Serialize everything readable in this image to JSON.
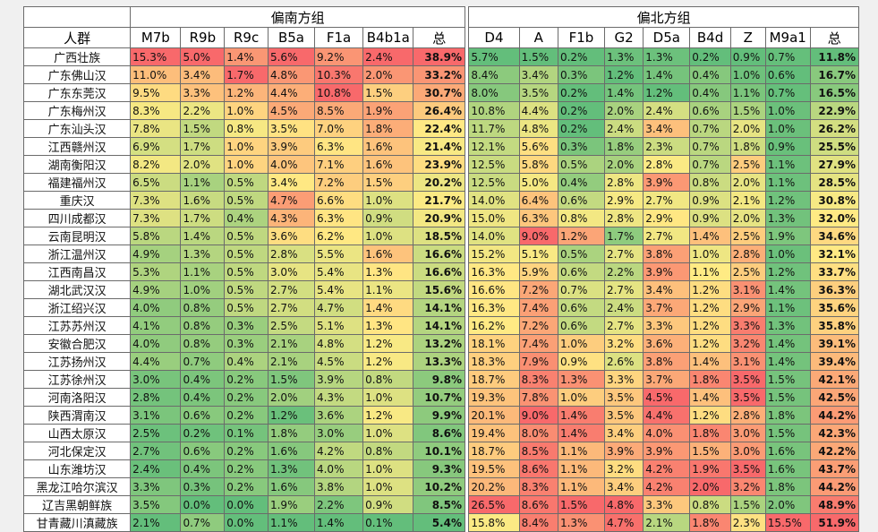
{
  "chart_data": {
    "type": "table",
    "corner_label": "人群",
    "groups": [
      {
        "name": "偏南方组",
        "columns": [
          "M7b",
          "R9b",
          "R9c",
          "B5a",
          "F1a",
          "B4b1a",
          "总"
        ]
      },
      {
        "name": "偏北方组",
        "columns": [
          "D4",
          "A",
          "F1b",
          "G2",
          "D5a",
          "B4d",
          "Z",
          "M9a1",
          "总"
        ]
      }
    ],
    "rows": [
      {
        "name": "广西壮族",
        "south": [
          "15.3%",
          "5.0%",
          "1.4%",
          "5.6%",
          "9.2%",
          "2.4%",
          "38.9%"
        ],
        "north": [
          "5.7%",
          "1.5%",
          "0.2%",
          "1.3%",
          "1.3%",
          "0.2%",
          "0.9%",
          "0.7%",
          "11.8%"
        ]
      },
      {
        "name": "广东佛山汉",
        "south": [
          "11.0%",
          "3.4%",
          "1.7%",
          "4.8%",
          "10.3%",
          "2.0%",
          "33.2%"
        ],
        "north": [
          "8.4%",
          "3.4%",
          "0.3%",
          "1.2%",
          "1.4%",
          "0.4%",
          "1.0%",
          "0.6%",
          "16.7%"
        ]
      },
      {
        "name": "广东东莞汉",
        "south": [
          "9.5%",
          "3.3%",
          "1.2%",
          "4.4%",
          "10.8%",
          "1.5%",
          "30.7%"
        ],
        "north": [
          "8.0%",
          "3.5%",
          "0.2%",
          "1.4%",
          "1.2%",
          "0.4%",
          "1.1%",
          "0.7%",
          "16.5%"
        ]
      },
      {
        "name": "广东梅州汉",
        "south": [
          "8.3%",
          "2.2%",
          "1.0%",
          "4.5%",
          "8.5%",
          "1.9%",
          "26.4%"
        ],
        "north": [
          "10.8%",
          "4.4%",
          "0.2%",
          "2.0%",
          "2.4%",
          "0.6%",
          "1.5%",
          "1.0%",
          "22.9%"
        ]
      },
      {
        "name": "广东汕头汉",
        "south": [
          "7.8%",
          "1.5%",
          "0.8%",
          "3.5%",
          "7.0%",
          "1.8%",
          "22.4%"
        ],
        "north": [
          "11.7%",
          "4.8%",
          "0.2%",
          "2.4%",
          "3.4%",
          "0.7%",
          "2.0%",
          "1.0%",
          "26.2%"
        ]
      },
      {
        "name": "江西赣州汉",
        "south": [
          "6.9%",
          "1.7%",
          "1.0%",
          "3.9%",
          "6.3%",
          "1.6%",
          "21.4%"
        ],
        "north": [
          "12.1%",
          "5.6%",
          "0.3%",
          "1.8%",
          "2.3%",
          "0.7%",
          "1.8%",
          "0.9%",
          "25.5%"
        ]
      },
      {
        "name": "湖南衡阳汉",
        "south": [
          "8.2%",
          "2.0%",
          "1.0%",
          "4.0%",
          "7.1%",
          "1.6%",
          "23.9%"
        ],
        "north": [
          "12.5%",
          "5.8%",
          "0.5%",
          "2.0%",
          "2.8%",
          "0.7%",
          "2.5%",
          "1.1%",
          "27.9%"
        ]
      },
      {
        "name": "福建福州汉",
        "south": [
          "6.5%",
          "1.1%",
          "0.5%",
          "3.4%",
          "7.2%",
          "1.5%",
          "20.2%"
        ],
        "north": [
          "12.5%",
          "5.0%",
          "0.4%",
          "2.8%",
          "3.9%",
          "0.8%",
          "2.0%",
          "1.1%",
          "28.5%"
        ]
      },
      {
        "name": "重庆汉",
        "south": [
          "7.3%",
          "1.6%",
          "0.5%",
          "4.7%",
          "6.6%",
          "1.0%",
          "21.7%"
        ],
        "north": [
          "14.0%",
          "6.4%",
          "0.6%",
          "2.9%",
          "2.7%",
          "0.9%",
          "2.1%",
          "1.2%",
          "30.8%"
        ]
      },
      {
        "name": "四川成都汉",
        "south": [
          "7.3%",
          "1.7%",
          "0.4%",
          "4.3%",
          "6.3%",
          "0.9%",
          "20.9%"
        ],
        "north": [
          "15.0%",
          "6.3%",
          "0.8%",
          "2.8%",
          "2.9%",
          "0.9%",
          "2.0%",
          "1.3%",
          "32.0%"
        ]
      },
      {
        "name": "云南昆明汉",
        "south": [
          "5.8%",
          "1.4%",
          "0.5%",
          "3.6%",
          "6.2%",
          "1.0%",
          "18.5%"
        ],
        "north": [
          "14.0%",
          "9.0%",
          "1.2%",
          "1.7%",
          "2.7%",
          "1.4%",
          "2.5%",
          "1.9%",
          "34.6%"
        ]
      },
      {
        "name": "浙江温州汉",
        "south": [
          "4.9%",
          "1.3%",
          "0.5%",
          "2.8%",
          "5.5%",
          "1.6%",
          "16.6%"
        ],
        "north": [
          "15.2%",
          "5.1%",
          "0.5%",
          "2.7%",
          "3.8%",
          "1.0%",
          "2.8%",
          "1.0%",
          "32.1%"
        ]
      },
      {
        "name": "江西南昌汉",
        "south": [
          "5.3%",
          "1.1%",
          "0.5%",
          "3.0%",
          "5.4%",
          "1.3%",
          "16.6%"
        ],
        "north": [
          "16.3%",
          "5.9%",
          "0.6%",
          "2.2%",
          "3.9%",
          "1.1%",
          "2.5%",
          "1.2%",
          "33.7%"
        ]
      },
      {
        "name": "湖北武汉汉",
        "south": [
          "4.9%",
          "1.0%",
          "0.5%",
          "2.7%",
          "5.4%",
          "1.1%",
          "15.6%"
        ],
        "north": [
          "16.6%",
          "7.2%",
          "0.7%",
          "2.7%",
          "3.4%",
          "1.2%",
          "3.1%",
          "1.4%",
          "36.3%"
        ]
      },
      {
        "name": "浙江绍兴汉",
        "south": [
          "4.0%",
          "0.8%",
          "0.5%",
          "2.7%",
          "4.7%",
          "1.4%",
          "14.1%"
        ],
        "north": [
          "16.3%",
          "7.4%",
          "0.6%",
          "2.4%",
          "3.7%",
          "1.2%",
          "2.9%",
          "1.1%",
          "35.6%"
        ]
      },
      {
        "name": "江苏苏州汉",
        "south": [
          "4.1%",
          "0.8%",
          "0.3%",
          "2.5%",
          "5.1%",
          "1.3%",
          "14.1%"
        ],
        "north": [
          "16.2%",
          "7.2%",
          "0.6%",
          "2.7%",
          "3.3%",
          "1.2%",
          "3.3%",
          "1.3%",
          "35.8%"
        ]
      },
      {
        "name": "安徽合肥汉",
        "south": [
          "4.0%",
          "0.8%",
          "0.3%",
          "2.1%",
          "4.8%",
          "1.2%",
          "13.2%"
        ],
        "north": [
          "18.1%",
          "7.4%",
          "1.0%",
          "3.2%",
          "3.6%",
          "1.2%",
          "3.2%",
          "1.4%",
          "39.1%"
        ]
      },
      {
        "name": "江苏扬州汉",
        "south": [
          "4.4%",
          "0.7%",
          "0.4%",
          "2.1%",
          "4.5%",
          "1.2%",
          "13.3%"
        ],
        "north": [
          "18.3%",
          "7.9%",
          "0.9%",
          "2.6%",
          "3.8%",
          "1.4%",
          "3.1%",
          "1.4%",
          "39.4%"
        ]
      },
      {
        "name": "江苏徐州汉",
        "south": [
          "3.0%",
          "0.4%",
          "0.2%",
          "1.5%",
          "3.9%",
          "0.8%",
          "9.8%"
        ],
        "north": [
          "18.7%",
          "8.3%",
          "1.3%",
          "3.3%",
          "3.7%",
          "1.8%",
          "3.5%",
          "1.5%",
          "42.1%"
        ]
      },
      {
        "name": "河南洛阳汉",
        "south": [
          "2.8%",
          "0.4%",
          "0.2%",
          "2.0%",
          "4.3%",
          "1.0%",
          "10.7%"
        ],
        "north": [
          "19.3%",
          "7.8%",
          "1.0%",
          "3.5%",
          "4.5%",
          "1.4%",
          "3.5%",
          "1.5%",
          "42.5%"
        ]
      },
      {
        "name": "陕西渭南汉",
        "south": [
          "3.1%",
          "0.6%",
          "0.2%",
          "1.2%",
          "3.6%",
          "1.2%",
          "9.9%"
        ],
        "north": [
          "20.1%",
          "9.0%",
          "1.4%",
          "3.5%",
          "4.4%",
          "1.2%",
          "2.8%",
          "1.8%",
          "44.2%"
        ]
      },
      {
        "name": "山西太原汉",
        "south": [
          "2.5%",
          "0.2%",
          "0.1%",
          "1.8%",
          "3.0%",
          "1.0%",
          "8.6%"
        ],
        "north": [
          "19.4%",
          "8.0%",
          "1.4%",
          "3.4%",
          "4.0%",
          "1.8%",
          "3.0%",
          "1.5%",
          "42.3%"
        ]
      },
      {
        "name": "河北保定汉",
        "south": [
          "2.7%",
          "0.6%",
          "0.2%",
          "1.6%",
          "4.2%",
          "0.8%",
          "10.1%"
        ],
        "north": [
          "18.7%",
          "8.5%",
          "1.1%",
          "3.9%",
          "3.9%",
          "1.5%",
          "3.0%",
          "1.6%",
          "42.2%"
        ]
      },
      {
        "name": "山东潍坊汉",
        "south": [
          "2.4%",
          "0.4%",
          "0.2%",
          "1.3%",
          "4.0%",
          "1.0%",
          "9.3%"
        ],
        "north": [
          "19.5%",
          "8.6%",
          "1.1%",
          "3.2%",
          "4.2%",
          "1.9%",
          "3.5%",
          "1.6%",
          "43.7%"
        ]
      },
      {
        "name": "黑龙江哈尔滨汉",
        "south": [
          "3.3%",
          "0.3%",
          "0.2%",
          "1.6%",
          "3.8%",
          "1.0%",
          "10.2%"
        ],
        "north": [
          "20.2%",
          "8.3%",
          "1.1%",
          "3.4%",
          "4.2%",
          "2.0%",
          "3.2%",
          "1.8%",
          "44.2%"
        ]
      },
      {
        "name": "辽吉黑朝鲜族",
        "south": [
          "3.5%",
          "0.0%",
          "0.0%",
          "1.9%",
          "2.2%",
          "0.9%",
          "8.5%"
        ],
        "north": [
          "26.5%",
          "8.6%",
          "1.5%",
          "4.8%",
          "3.3%",
          "0.8%",
          "1.5%",
          "2.0%",
          "48.9%"
        ]
      },
      {
        "name": "甘青藏川滇藏族",
        "south": [
          "2.1%",
          "0.7%",
          "0.0%",
          "1.1%",
          "1.4%",
          "0.1%",
          "5.4%"
        ],
        "north": [
          "15.8%",
          "8.4%",
          "1.3%",
          "4.7%",
          "2.1%",
          "1.8%",
          "2.3%",
          "15.5%",
          "51.9%"
        ]
      }
    ],
    "color_scale": {
      "low": "#63be7b",
      "mid": "#ffeb84",
      "high": "#f8696b"
    }
  }
}
